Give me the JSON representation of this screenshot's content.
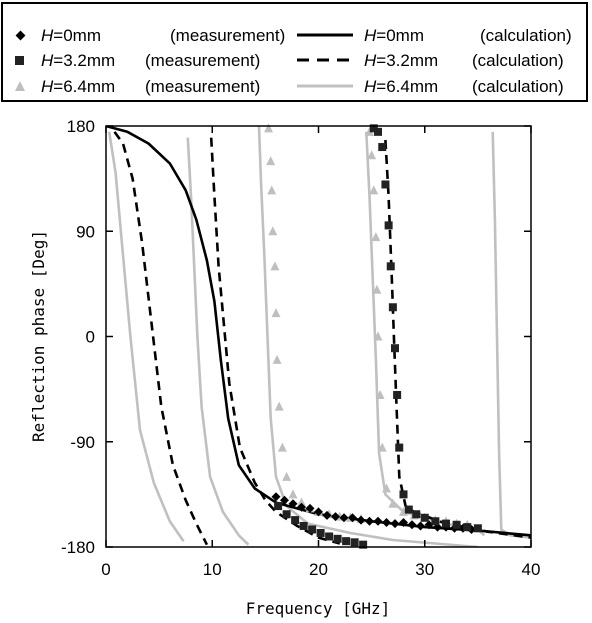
{
  "chart_data": {
    "type": "line",
    "xlabel": "Frequency [GHz]",
    "ylabel": "Reflection phase [Deg]",
    "xlim": [
      0,
      40
    ],
    "ylim": [
      -180,
      180
    ],
    "xticks": [
      "0",
      "10",
      "20",
      "30",
      "40"
    ],
    "yticks": [
      "180",
      "90",
      "0",
      "-90",
      "-180"
    ],
    "xtick_values": [
      0,
      10,
      20,
      30,
      40
    ],
    "ytick_values": [
      180,
      90,
      0,
      -90,
      -180
    ],
    "grid": false,
    "legend_position": "top",
    "legend": [
      {
        "italic": "H",
        "text": "=0mm",
        "note": "(measurement)"
      },
      {
        "italic": "H",
        "text": "=3.2mm",
        "note": "(measurement)"
      },
      {
        "italic": "H",
        "text": "=6.4mm",
        "note": "(measurement)"
      },
      {
        "italic": "H",
        "text": "=0mm",
        "note": "(calculation)"
      },
      {
        "italic": "H",
        "text": "=3.2mm",
        "note": "(calculation)"
      },
      {
        "italic": "H",
        "text": "=6.4mm",
        "note": "(calculation)"
      }
    ],
    "calculation": [
      {
        "key": "H0",
        "color": "#000000",
        "dash": "none",
        "segments": [
          [
            [
              0,
              180
            ],
            [
              2,
              175
            ],
            [
              4,
              165
            ],
            [
              6,
              148
            ],
            [
              7.5,
              125
            ],
            [
              8.5,
              100
            ],
            [
              9.5,
              65
            ],
            [
              10.2,
              30
            ],
            [
              10.8,
              -20
            ],
            [
              11.5,
              -70
            ],
            [
              12.5,
              -110
            ],
            [
              14,
              -130
            ],
            [
              16,
              -142
            ],
            [
              20,
              -152
            ],
            [
              25,
              -158
            ],
            [
              30,
              -163
            ],
            [
              35,
              -166
            ],
            [
              40,
              -170
            ]
          ]
        ]
      },
      {
        "key": "H32",
        "color": "#000000",
        "dash": "9,6",
        "segments": [
          [
            [
              0.8,
              175
            ],
            [
              1.6,
              165
            ],
            [
              2.5,
              135
            ],
            [
              3.4,
              80
            ],
            [
              4.3,
              10
            ],
            [
              5.2,
              -60
            ],
            [
              6.3,
              -110
            ],
            [
              7.5,
              -140
            ],
            [
              8.5,
              -160
            ],
            [
              9.5,
              -178
            ]
          ],
          [
            [
              9.9,
              170
            ],
            [
              10.2,
              120
            ],
            [
              10.6,
              60
            ],
            [
              11.2,
              0
            ],
            [
              11.6,
              -40
            ],
            [
              12.6,
              -95
            ],
            [
              14,
              -125
            ],
            [
              15,
              -140
            ],
            [
              16,
              -150
            ],
            [
              18,
              -162
            ],
            [
              20,
              -172
            ],
            [
              22,
              -177
            ]
          ],
          [
            [
              26.3,
              168
            ],
            [
              26.6,
              120
            ],
            [
              26.9,
              50
            ],
            [
              27.1,
              0
            ],
            [
              27.3,
              -50
            ],
            [
              27.6,
              -120
            ],
            [
              28.2,
              -145
            ],
            [
              29,
              -150
            ],
            [
              32,
              -160
            ],
            [
              36,
              -167
            ],
            [
              40,
              -172
            ]
          ]
        ]
      },
      {
        "key": "H64",
        "color": "#c0c0c0",
        "dash": "none",
        "segments": [
          [
            [
              0.3,
              175
            ],
            [
              0.9,
              140
            ],
            [
              1.5,
              80
            ],
            [
              2.3,
              0
            ],
            [
              3.2,
              -80
            ],
            [
              4.5,
              -125
            ],
            [
              6,
              -158
            ],
            [
              7.3,
              -175
            ]
          ],
          [
            [
              7.7,
              170
            ],
            [
              8,
              120
            ],
            [
              8.3,
              60
            ],
            [
              8.6,
              0
            ],
            [
              9,
              -60
            ],
            [
              9.8,
              -120
            ],
            [
              11,
              -150
            ],
            [
              12.5,
              -170
            ],
            [
              13.4,
              -178
            ]
          ],
          [
            [
              14.4,
              180
            ],
            [
              14.6,
              130
            ],
            [
              14.9,
              70
            ],
            [
              15.2,
              0
            ],
            [
              15.5,
              -70
            ],
            [
              16,
              -120
            ],
            [
              17,
              -145
            ],
            [
              19,
              -160
            ],
            [
              23,
              -168
            ],
            [
              27,
              -174
            ],
            [
              31,
              -177
            ],
            [
              35,
              -180
            ]
          ],
          [
            [
              24.5,
              175
            ],
            [
              24.8,
              120
            ],
            [
              25.1,
              50
            ],
            [
              25.4,
              -20
            ],
            [
              25.7,
              -100
            ],
            [
              26.3,
              -135
            ],
            [
              28,
              -150
            ],
            [
              32,
              -160
            ],
            [
              35,
              -165
            ],
            [
              35.6,
              -170
            ]
          ],
          [
            [
              36.4,
              175
            ],
            [
              36.6,
              100
            ],
            [
              36.8,
              0
            ],
            [
              37,
              -100
            ],
            [
              37.2,
              -165
            ],
            [
              38,
              -170
            ],
            [
              40,
              -172
            ]
          ]
        ]
      }
    ],
    "measurement": [
      {
        "key": "H0",
        "marker": "diamond",
        "color": "#000000",
        "points": [
          [
            16,
            -137
          ],
          [
            16.8,
            -140
          ],
          [
            17.6,
            -143
          ],
          [
            18.4,
            -146
          ],
          [
            19.2,
            -147
          ],
          [
            20,
            -150
          ],
          [
            20.8,
            -153
          ],
          [
            21.6,
            -154
          ],
          [
            22.4,
            -155
          ],
          [
            23.2,
            -155
          ],
          [
            24,
            -157
          ],
          [
            24.8,
            -158
          ],
          [
            25.6,
            -158
          ],
          [
            26.4,
            -159
          ],
          [
            27.2,
            -160
          ],
          [
            28,
            -159
          ],
          [
            28.8,
            -161
          ],
          [
            29.6,
            -162
          ],
          [
            30.4,
            -161
          ],
          [
            31.2,
            -163
          ],
          [
            32,
            -163
          ],
          [
            32.8,
            -164
          ],
          [
            33.6,
            -164
          ],
          [
            34.4,
            -165
          ]
        ]
      },
      {
        "key": "H32",
        "marker": "square",
        "color": "#222222",
        "points": [
          [
            16.2,
            -145
          ],
          [
            17,
            -152
          ],
          [
            17.8,
            -157
          ],
          [
            18.6,
            -162
          ],
          [
            19.4,
            -165
          ],
          [
            20.2,
            -168
          ],
          [
            21,
            -171
          ],
          [
            21.8,
            -173
          ],
          [
            22.6,
            -175
          ],
          [
            23.4,
            -176
          ],
          [
            24.2,
            -178
          ],
          [
            25.2,
            178
          ],
          [
            25.6,
            175
          ],
          [
            26,
            162
          ],
          [
            26.3,
            130
          ],
          [
            26.6,
            95
          ],
          [
            26.8,
            60
          ],
          [
            27,
            25
          ],
          [
            27.2,
            -10
          ],
          [
            27.4,
            -50
          ],
          [
            27.6,
            -95
          ],
          [
            28,
            -135
          ],
          [
            28.5,
            -148
          ],
          [
            29.2,
            -152
          ],
          [
            30,
            -155
          ],
          [
            31,
            -158
          ],
          [
            32,
            -160
          ],
          [
            33,
            -161
          ],
          [
            34,
            -163
          ],
          [
            35,
            -164
          ]
        ]
      },
      {
        "key": "H64",
        "marker": "triangle",
        "color": "#bfbfbf",
        "points": [
          [
            15.3,
            178
          ],
          [
            15.5,
            150
          ],
          [
            15.6,
            125
          ],
          [
            15.7,
            90
          ],
          [
            15.9,
            60
          ],
          [
            16,
            20
          ],
          [
            16.1,
            -20
          ],
          [
            16.3,
            -60
          ],
          [
            16.6,
            -95
          ],
          [
            17,
            -120
          ],
          [
            17.6,
            -135
          ],
          [
            18.4,
            -142
          ],
          [
            19.2,
            -147
          ],
          [
            20,
            -150
          ],
          [
            21,
            -152
          ],
          [
            22,
            -154
          ],
          [
            23,
            -155
          ],
          [
            24,
            -156
          ],
          [
            24.8,
            175
          ],
          [
            25,
            155
          ],
          [
            25.2,
            125
          ],
          [
            25.4,
            85
          ],
          [
            25.5,
            40
          ],
          [
            25.6,
            0
          ],
          [
            25.8,
            -50
          ],
          [
            26,
            -95
          ],
          [
            26.4,
            -130
          ],
          [
            27,
            -143
          ],
          [
            28,
            -150
          ],
          [
            29,
            -153
          ],
          [
            30,
            -155
          ],
          [
            31,
            -157
          ],
          [
            32,
            -158
          ],
          [
            33,
            -160
          ],
          [
            34,
            -161
          ]
        ]
      }
    ]
  }
}
